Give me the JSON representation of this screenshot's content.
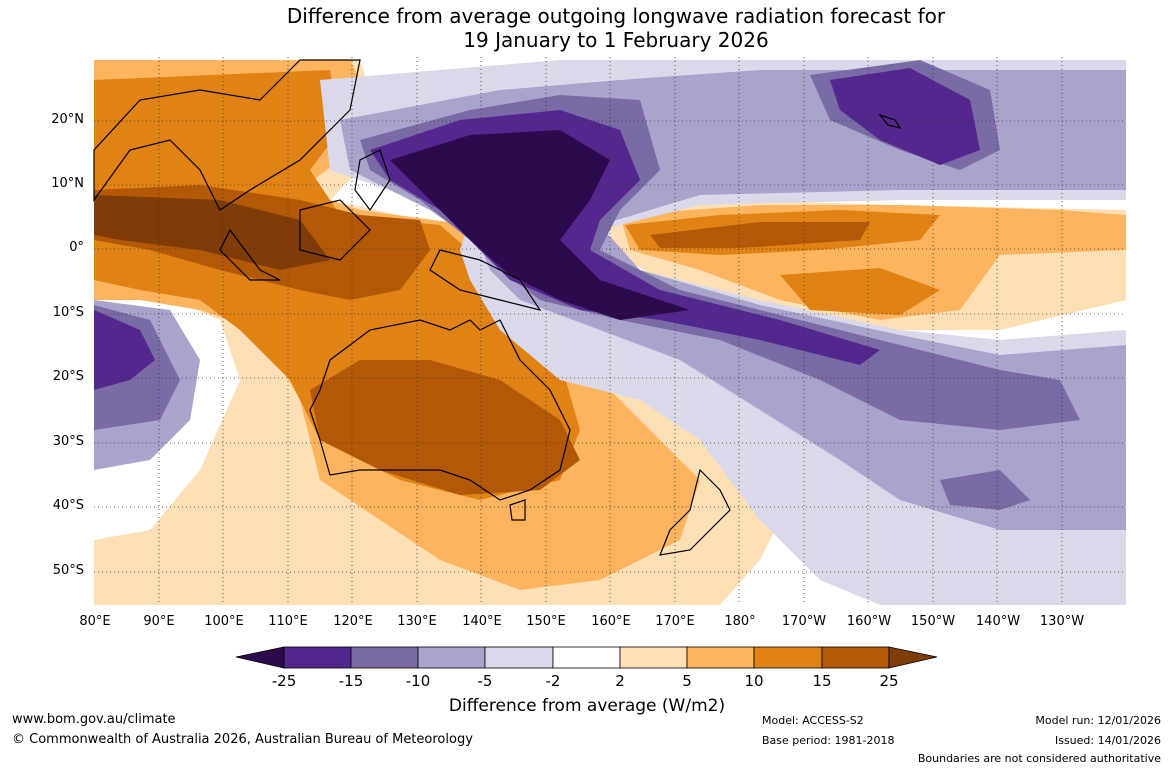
{
  "title": {
    "line1": "Difference from average outgoing longwave radiation forecast for",
    "line2": "19 January to 1 February 2026"
  },
  "map": {
    "latitude_labels": [
      "20°N",
      "10°N",
      "0°",
      "10°S",
      "20°S",
      "30°S",
      "40°S",
      "50°S"
    ],
    "longitude_labels": [
      "80°E",
      "90°E",
      "100°E",
      "110°E",
      "120°E",
      "130°E",
      "140°E",
      "150°E",
      "160°E",
      "170°E",
      "180°",
      "170°W",
      "160°W",
      "150°W",
      "140°W",
      "130°W"
    ]
  },
  "colorbar": {
    "ticks": [
      "-25",
      "-15",
      "-10",
      "-5",
      "-2",
      "2",
      "5",
      "10",
      "15",
      "25"
    ],
    "colors": [
      "#2d0a4e",
      "#54278f",
      "#7a6aa6",
      "#aaa3cc",
      "#d9d9ea",
      "#ffffff",
      "#fee0b6",
      "#fdb45e",
      "#e08214",
      "#b35806",
      "#7f3b08"
    ],
    "title": "Difference from average (W/m2)"
  },
  "footer": {
    "url": "www.bom.gov.au/climate",
    "copyright": "© Commonwealth of Australia 2026, Australian Bureau of Meteorology",
    "model": "Model: ACCESS-S2",
    "base_period": "Base period: 1981-2018",
    "model_run": "Model run: 12/01/2026",
    "issued": "Issued: 14/01/2026",
    "disclaimer": "Boundaries are not considered authoritative"
  }
}
